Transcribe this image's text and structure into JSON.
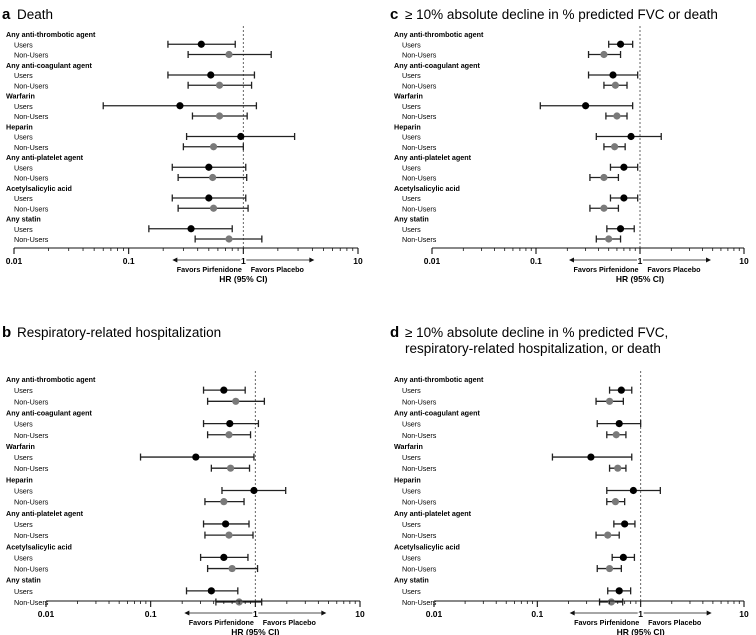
{
  "chart_data": [
    {
      "type": "forest",
      "panel_letter": "a",
      "title_lines": [
        "Death"
      ],
      "xlabel": "HR (95% CI)",
      "xscale": "log",
      "xlim": [
        0.01,
        10
      ],
      "xticks": [
        "0.01",
        "0.1",
        "1",
        "10"
      ],
      "reference_line": 1,
      "direction_left": "Favors Pirfenidone",
      "direction_right": "Favors Placebo",
      "groups": [
        {
          "label": "Any anti-thrombotic agent",
          "rows": [
            {
              "label": "Users",
              "hr": 0.43,
              "lo": 0.22,
              "hi": 0.85
            },
            {
              "label": "Non-Users",
              "hr": 0.75,
              "lo": 0.33,
              "hi": 1.75
            }
          ]
        },
        {
          "label": "Any anti-coagulant agent",
          "rows": [
            {
              "label": "Users",
              "hr": 0.52,
              "lo": 0.22,
              "hi": 1.25
            },
            {
              "label": "Non-Users",
              "hr": 0.62,
              "lo": 0.33,
              "hi": 1.18
            }
          ]
        },
        {
          "label": "Warfarin",
          "rows": [
            {
              "label": "Users",
              "hr": 0.28,
              "lo": 0.06,
              "hi": 1.3
            },
            {
              "label": "Non-Users",
              "hr": 0.62,
              "lo": 0.36,
              "hi": 1.08
            }
          ]
        },
        {
          "label": "Heparin",
          "rows": [
            {
              "label": "Users",
              "hr": 0.95,
              "lo": 0.32,
              "hi": 2.8
            },
            {
              "label": "Non-Users",
              "hr": 0.55,
              "lo": 0.3,
              "hi": 1.0
            }
          ]
        },
        {
          "label": "Any anti-platelet agent",
          "rows": [
            {
              "label": "Users",
              "hr": 0.5,
              "lo": 0.24,
              "hi": 1.05
            },
            {
              "label": "Non-Users",
              "hr": 0.54,
              "lo": 0.27,
              "hi": 1.07
            }
          ]
        },
        {
          "label": "Acetylsalicylic acid",
          "rows": [
            {
              "label": "Users",
              "hr": 0.5,
              "lo": 0.24,
              "hi": 1.05
            },
            {
              "label": "Non-Users",
              "hr": 0.55,
              "lo": 0.27,
              "hi": 1.1
            }
          ]
        },
        {
          "label": "Any statin",
          "rows": [
            {
              "label": "Users",
              "hr": 0.35,
              "lo": 0.15,
              "hi": 0.8
            },
            {
              "label": "Non-Users",
              "hr": 0.75,
              "lo": 0.38,
              "hi": 1.45
            }
          ]
        }
      ]
    },
    {
      "type": "forest",
      "panel_letter": "b",
      "title_lines": [
        "Respiratory-related hospitalization"
      ],
      "xlabel": "HR (95% CI)",
      "xscale": "log",
      "xlim": [
        0.01,
        10
      ],
      "xticks": [
        "0.01",
        "0.1",
        "1",
        "10"
      ],
      "reference_line": 1,
      "direction_left": "Favors Pirfenidone",
      "direction_right": "Favors Placebo",
      "groups": [
        {
          "label": "Any anti-thrombotic agent",
          "rows": [
            {
              "label": "Users",
              "hr": 0.5,
              "lo": 0.32,
              "hi": 0.8
            },
            {
              "label": "Non-Users",
              "hr": 0.65,
              "lo": 0.35,
              "hi": 1.22
            }
          ]
        },
        {
          "label": "Any anti-coagulant agent",
          "rows": [
            {
              "label": "Users",
              "hr": 0.57,
              "lo": 0.32,
              "hi": 1.07
            },
            {
              "label": "Non-Users",
              "hr": 0.56,
              "lo": 0.35,
              "hi": 0.9
            }
          ]
        },
        {
          "label": "Warfarin",
          "rows": [
            {
              "label": "Users",
              "hr": 0.27,
              "lo": 0.08,
              "hi": 0.97
            },
            {
              "label": "Non-Users",
              "hr": 0.58,
              "lo": 0.38,
              "hi": 0.88
            }
          ]
        },
        {
          "label": "Heparin",
          "rows": [
            {
              "label": "Users",
              "hr": 0.97,
              "lo": 0.48,
              "hi": 1.95
            },
            {
              "label": "Non-Users",
              "hr": 0.5,
              "lo": 0.33,
              "hi": 0.78
            }
          ]
        },
        {
          "label": "Any anti-platelet agent",
          "rows": [
            {
              "label": "Users",
              "hr": 0.52,
              "lo": 0.32,
              "hi": 0.87
            },
            {
              "label": "Non-Users",
              "hr": 0.56,
              "lo": 0.33,
              "hi": 0.95
            }
          ]
        },
        {
          "label": "Acetylsalicylic acid",
          "rows": [
            {
              "label": "Users",
              "hr": 0.5,
              "lo": 0.3,
              "hi": 0.85
            },
            {
              "label": "Non-Users",
              "hr": 0.6,
              "lo": 0.35,
              "hi": 1.05
            }
          ]
        },
        {
          "label": "Any statin",
          "rows": [
            {
              "label": "Users",
              "hr": 0.38,
              "lo": 0.22,
              "hi": 0.68
            },
            {
              "label": "Non-Users",
              "hr": 0.7,
              "lo": 0.42,
              "hi": 1.15
            }
          ]
        }
      ]
    },
    {
      "type": "forest",
      "panel_letter": "c",
      "title_lines": [
        "≥ 10% absolute decline in % predicted FVC or death"
      ],
      "xlabel": "HR (95% CI)",
      "xscale": "log",
      "xlim": [
        0.01,
        10
      ],
      "xticks": [
        "0.01",
        "0.1",
        "1",
        "10"
      ],
      "reference_line": 1,
      "direction_left": "Favors Pirfenidone",
      "direction_right": "Favors Placebo",
      "groups": [
        {
          "label": "Any anti-thrombotic agent",
          "rows": [
            {
              "label": "Users",
              "hr": 0.65,
              "lo": 0.5,
              "hi": 0.85
            },
            {
              "label": "Non-Users",
              "hr": 0.45,
              "lo": 0.32,
              "hi": 0.65
            }
          ]
        },
        {
          "label": "Any anti-coagulant agent",
          "rows": [
            {
              "label": "Users",
              "hr": 0.55,
              "lo": 0.32,
              "hi": 0.95
            },
            {
              "label": "Non-Users",
              "hr": 0.58,
              "lo": 0.45,
              "hi": 0.75
            }
          ]
        },
        {
          "label": "Warfarin",
          "rows": [
            {
              "label": "Users",
              "hr": 0.3,
              "lo": 0.11,
              "hi": 0.85
            },
            {
              "label": "Non-Users",
              "hr": 0.6,
              "lo": 0.47,
              "hi": 0.75
            }
          ]
        },
        {
          "label": "Heparin",
          "rows": [
            {
              "label": "Users",
              "hr": 0.82,
              "lo": 0.38,
              "hi": 1.6
            },
            {
              "label": "Non-Users",
              "hr": 0.57,
              "lo": 0.45,
              "hi": 0.72
            }
          ]
        },
        {
          "label": "Any anti-platelet agent",
          "rows": [
            {
              "label": "Users",
              "hr": 0.7,
              "lo": 0.52,
              "hi": 0.95
            },
            {
              "label": "Non-Users",
              "hr": 0.45,
              "lo": 0.33,
              "hi": 0.62
            }
          ]
        },
        {
          "label": "Acetylsalicylic acid",
          "rows": [
            {
              "label": "Users",
              "hr": 0.7,
              "lo": 0.52,
              "hi": 0.95
            },
            {
              "label": "Non-Users",
              "hr": 0.45,
              "lo": 0.33,
              "hi": 0.62
            }
          ]
        },
        {
          "label": "Any statin",
          "rows": [
            {
              "label": "Users",
              "hr": 0.65,
              "lo": 0.48,
              "hi": 0.88
            },
            {
              "label": "Non-Users",
              "hr": 0.5,
              "lo": 0.38,
              "hi": 0.65
            }
          ]
        }
      ]
    },
    {
      "type": "forest",
      "panel_letter": "d",
      "title_lines": [
        "≥ 10% absolute decline in % predicted FVC,",
        "respiratory-related hospitalization, or death"
      ],
      "xlabel": "HR (95% CI)",
      "xscale": "log",
      "xlim": [
        0.01,
        10
      ],
      "xticks": [
        "0.01",
        "0.1",
        "1",
        "10"
      ],
      "reference_line": 1,
      "direction_left": "Favors Pirfenidone",
      "direction_right": "Favors Placebo",
      "groups": [
        {
          "label": "Any anti-thrombotic agent",
          "rows": [
            {
              "label": "Users",
              "hr": 0.65,
              "lo": 0.5,
              "hi": 0.82
            },
            {
              "label": "Non-Users",
              "hr": 0.5,
              "lo": 0.37,
              "hi": 0.68
            }
          ]
        },
        {
          "label": "Any anti-coagulant agent",
          "rows": [
            {
              "label": "Users",
              "hr": 0.62,
              "lo": 0.38,
              "hi": 1.0
            },
            {
              "label": "Non-Users",
              "hr": 0.58,
              "lo": 0.47,
              "hi": 0.72
            }
          ]
        },
        {
          "label": "Warfarin",
          "rows": [
            {
              "label": "Users",
              "hr": 0.33,
              "lo": 0.14,
              "hi": 0.82
            },
            {
              "label": "Non-Users",
              "hr": 0.6,
              "lo": 0.5,
              "hi": 0.72
            }
          ]
        },
        {
          "label": "Heparin",
          "rows": [
            {
              "label": "Users",
              "hr": 0.85,
              "lo": 0.47,
              "hi": 1.55
            },
            {
              "label": "Non-Users",
              "hr": 0.57,
              "lo": 0.47,
              "hi": 0.7
            }
          ]
        },
        {
          "label": "Any anti-platelet agent",
          "rows": [
            {
              "label": "Users",
              "hr": 0.7,
              "lo": 0.55,
              "hi": 0.88
            },
            {
              "label": "Non-Users",
              "hr": 0.48,
              "lo": 0.37,
              "hi": 0.62
            }
          ]
        },
        {
          "label": "Acetylsalicylic acid",
          "rows": [
            {
              "label": "Users",
              "hr": 0.68,
              "lo": 0.53,
              "hi": 0.87
            },
            {
              "label": "Non-Users",
              "hr": 0.5,
              "lo": 0.38,
              "hi": 0.65
            }
          ]
        },
        {
          "label": "Any statin",
          "rows": [
            {
              "label": "Users",
              "hr": 0.62,
              "lo": 0.48,
              "hi": 0.8
            },
            {
              "label": "Non-Users",
              "hr": 0.52,
              "lo": 0.4,
              "hi": 0.67
            }
          ]
        }
      ]
    }
  ],
  "colors": {
    "users_marker": "#000000",
    "non_users_marker": "#7a7a7a",
    "line": "#222222",
    "reference_line": "#555555"
  }
}
